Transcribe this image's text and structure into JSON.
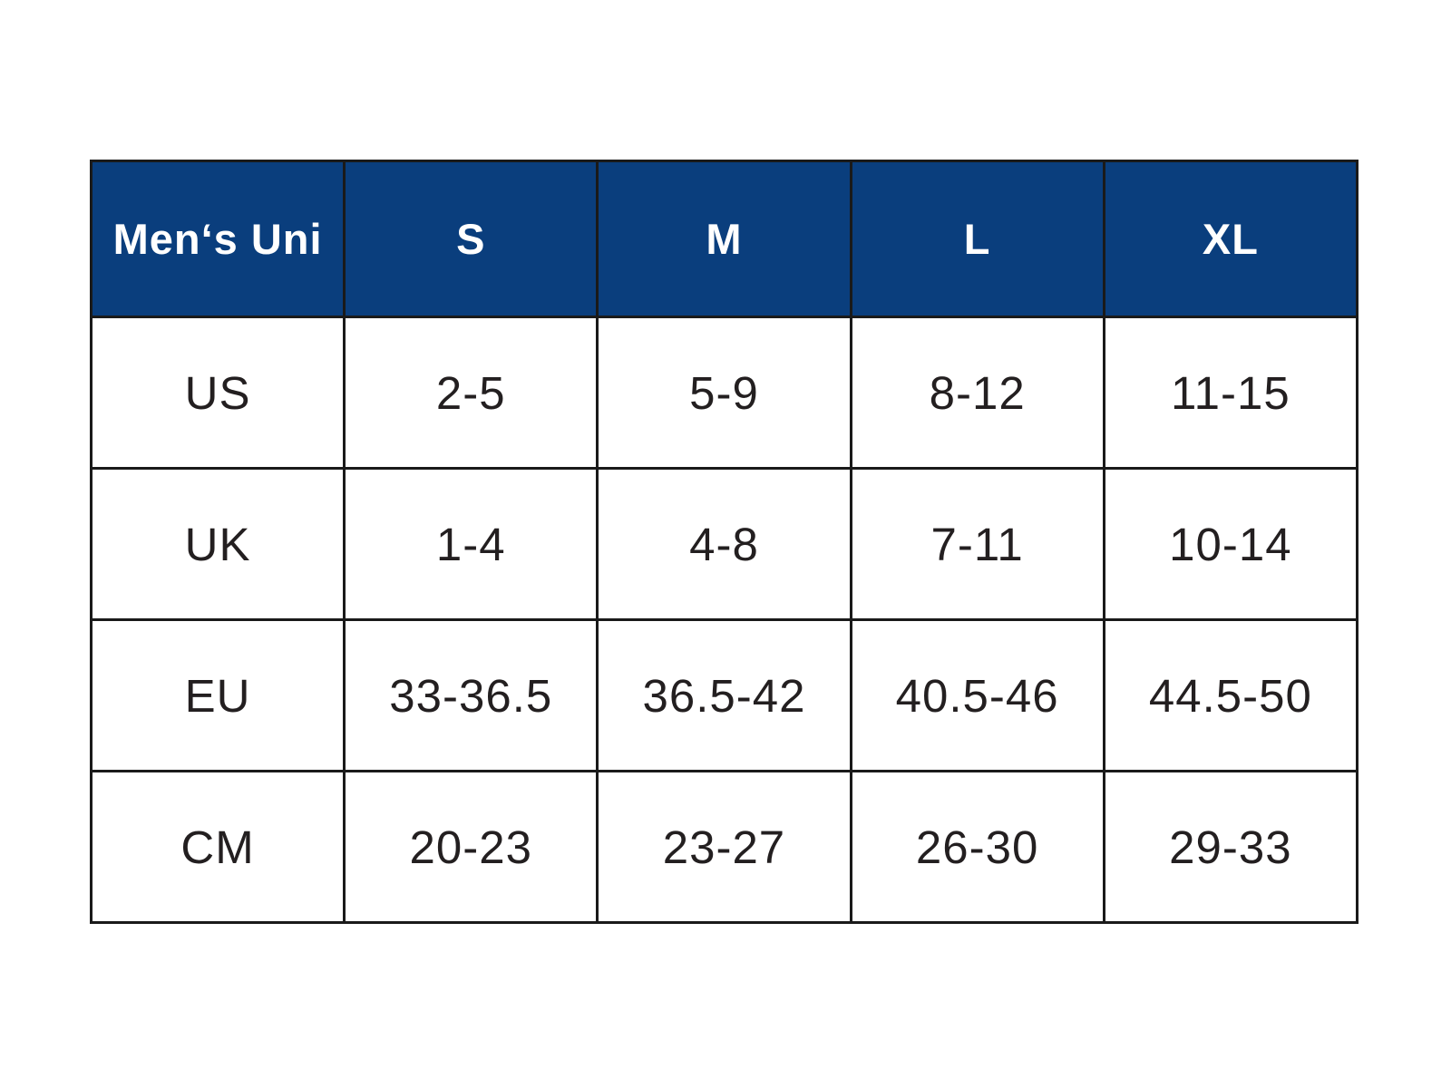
{
  "colors": {
    "header_bg": "#0a3e7d",
    "header_text": "#ffffff",
    "cell_text": "#231f20",
    "border": "#1a1a1a",
    "page_bg": "#ffffff"
  },
  "table": {
    "columns": [
      "Men‘s Uni",
      "S",
      "M",
      "L",
      "XL"
    ],
    "rows": [
      {
        "label": "US",
        "values": [
          "2-5",
          "5-9",
          "8-12",
          "11-15"
        ]
      },
      {
        "label": "UK",
        "values": [
          "1-4",
          "4-8",
          "7-11",
          "10-14"
        ]
      },
      {
        "label": "EU",
        "values": [
          "33-36.5",
          "36.5-42",
          "40.5-46",
          "44.5-50"
        ]
      },
      {
        "label": "CM",
        "values": [
          "20-23",
          "23-27",
          "26-30",
          "29-33"
        ]
      }
    ]
  },
  "chart_data": {
    "type": "table",
    "columns": [
      "Men‘s Uni",
      "S",
      "M",
      "L",
      "XL"
    ],
    "rows": [
      [
        "US",
        "2-5",
        "5-9",
        "8-12",
        "11-15"
      ],
      [
        "UK",
        "1-4",
        "4-8",
        "7-11",
        "10-14"
      ],
      [
        "EU",
        "33-36.5",
        "36.5-42",
        "40.5-46",
        "44.5-50"
      ],
      [
        "CM",
        "20-23",
        "23-27",
        "26-30",
        "29-33"
      ]
    ]
  }
}
